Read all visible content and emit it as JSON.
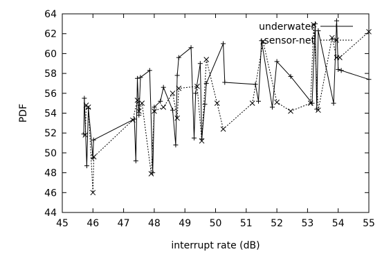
{
  "chart_data": {
    "type": "line",
    "xlabel": "interrupt rate (dB)",
    "ylabel": "PDF",
    "xlim": [
      45,
      55
    ],
    "ylim": [
      44,
      64
    ],
    "xticks": [
      "45",
      "46",
      "47",
      "48",
      "49",
      "50",
      "51",
      "52",
      "53",
      "54",
      "55"
    ],
    "yticks": [
      "44",
      "46",
      "48",
      "50",
      "52",
      "54",
      "56",
      "58",
      "60",
      "62",
      "64"
    ],
    "grid": false,
    "legend_position": "top-right",
    "series": [
      {
        "name": "underwater",
        "style": "solid",
        "marker": "plus",
        "x": [
          45.7,
          45.72,
          45.8,
          45.85,
          46.0,
          46.02,
          47.35,
          47.4,
          47.45,
          47.5,
          47.55,
          47.85,
          47.95,
          48.0,
          48.2,
          48.3,
          48.6,
          48.7,
          48.75,
          48.8,
          49.2,
          49.3,
          49.35,
          49.5,
          49.55,
          49.65,
          49.7,
          50.25,
          50.3,
          51.3,
          51.4,
          51.5,
          51.85,
          52.0,
          52.45,
          53.15,
          53.25,
          53.3,
          53.35,
          53.85,
          53.95,
          54.0,
          54.1,
          55.0
        ],
        "y": [
          51.9,
          55.5,
          48.7,
          54.5,
          49.5,
          51.3,
          53.4,
          49.2,
          57.5,
          53.8,
          57.6,
          58.3,
          48.0,
          54.6,
          55.2,
          56.6,
          54.3,
          50.8,
          57.8,
          59.6,
          60.6,
          51.5,
          56.0,
          59.0,
          51.4,
          54.9,
          57.0,
          61.0,
          57.1,
          56.9,
          55.2,
          61.3,
          54.6,
          59.2,
          57.7,
          55.0,
          63.0,
          54.4,
          62.3,
          55.0,
          63.3,
          58.4,
          58.3,
          57.4
        ]
      },
      {
        "name": "sensor-net",
        "style": "dashed",
        "marker": "x",
        "x": [
          45.75,
          45.78,
          45.85,
          46.0,
          46.03,
          47.3,
          47.45,
          47.5,
          47.6,
          47.9,
          48.0,
          48.3,
          48.6,
          48.75,
          48.8,
          49.4,
          49.55,
          49.7,
          50.05,
          50.25,
          51.2,
          51.55,
          52.0,
          52.45,
          53.1,
          53.2,
          53.35,
          53.8,
          53.95,
          54.05,
          55.0
        ],
        "y": [
          51.8,
          54.8,
          54.6,
          46.0,
          49.6,
          53.3,
          55.3,
          54.2,
          55.0,
          47.9,
          54.2,
          54.6,
          56.0,
          53.5,
          56.5,
          56.7,
          51.2,
          59.4,
          55.0,
          52.4,
          55.0,
          61.2,
          55.1,
          54.2,
          55.0,
          62.9,
          54.3,
          61.6,
          59.6,
          59.6,
          62.2
        ]
      }
    ]
  }
}
